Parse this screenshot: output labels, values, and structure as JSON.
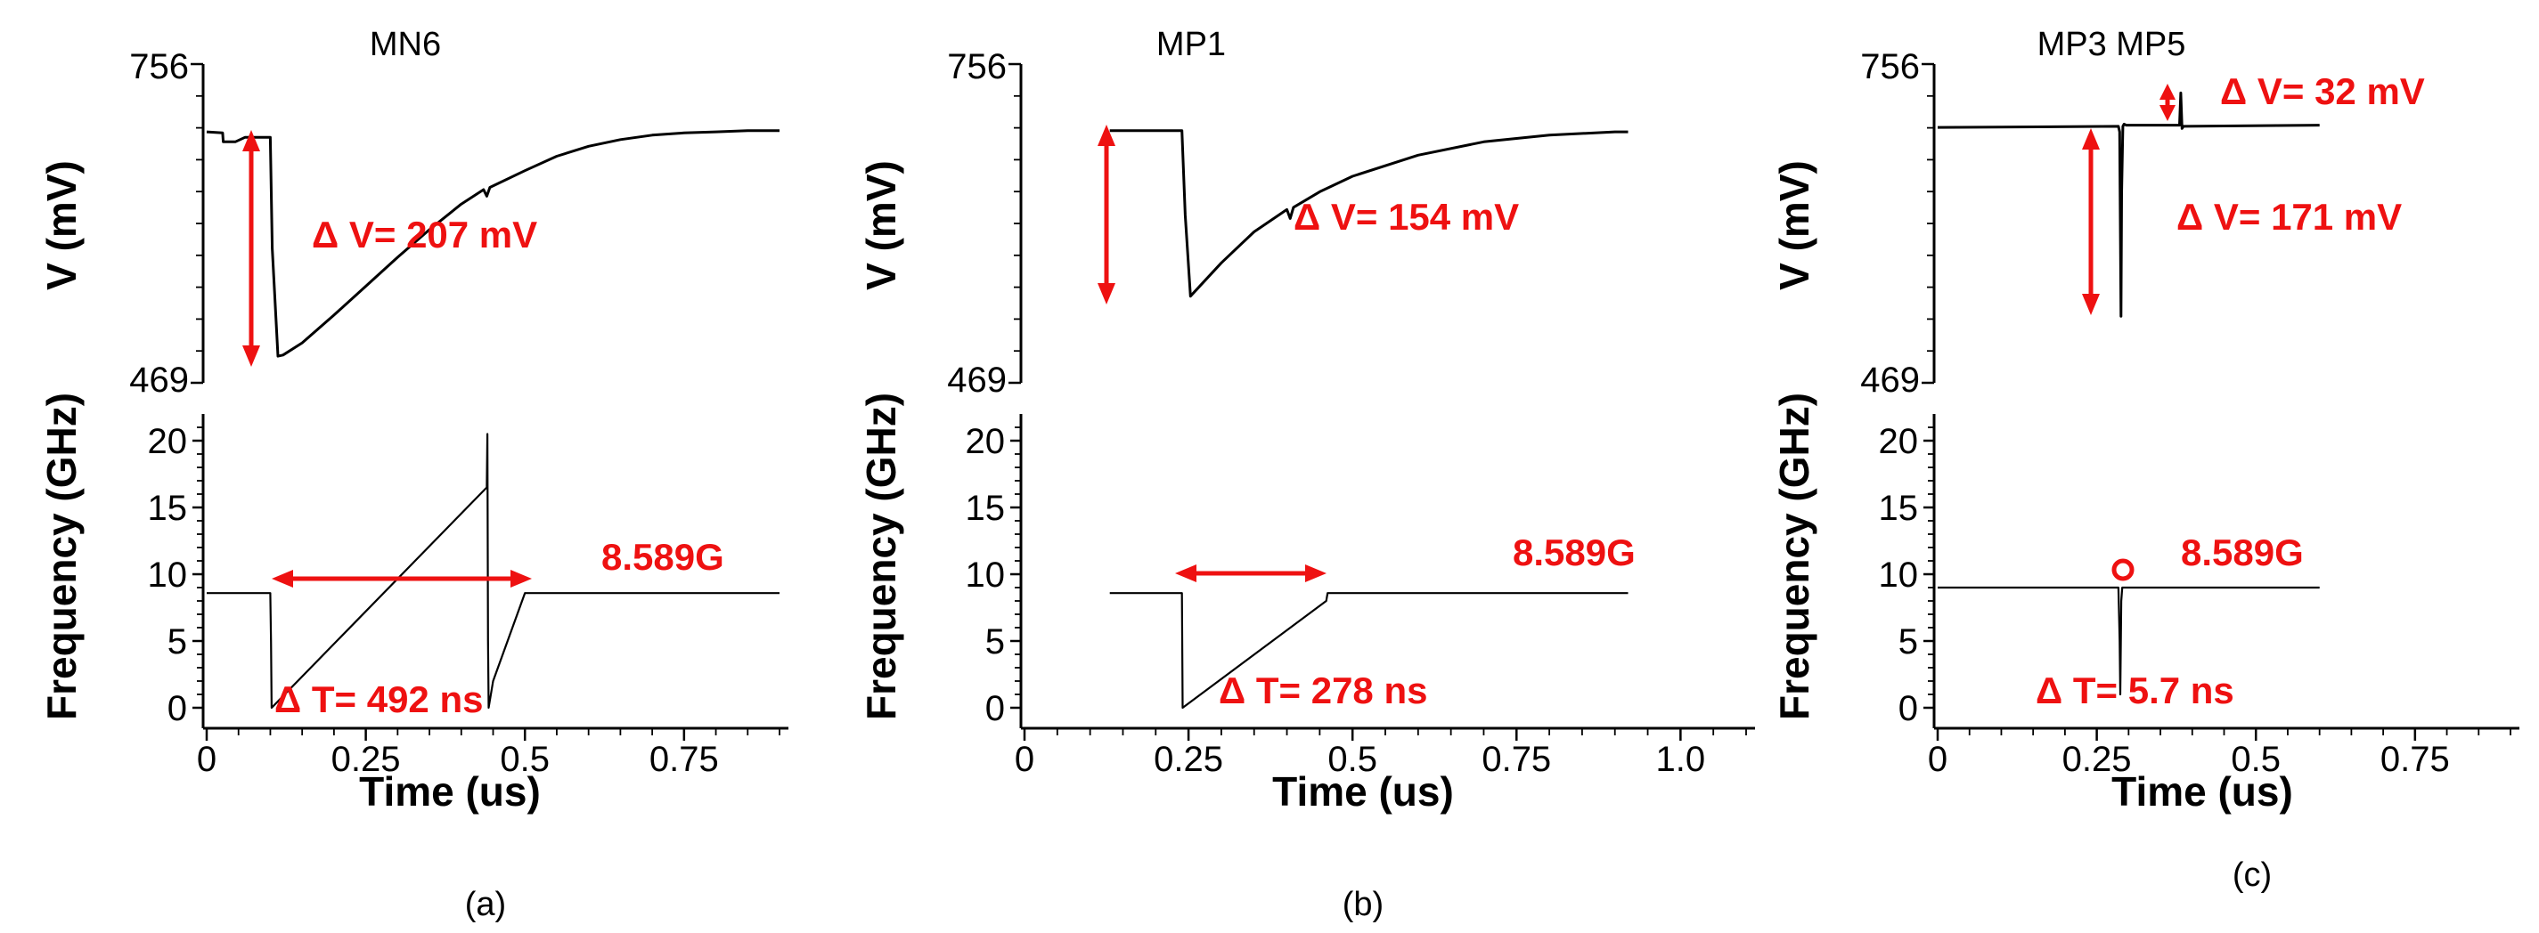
{
  "chart_data": [
    {
      "id": "a",
      "type": "line",
      "caption": "(a)",
      "title": "MN6",
      "xlabel": "Time (us)",
      "xlim": [
        0,
        0.9
      ],
      "xticks": [
        "0",
        "0.25",
        "0.5",
        "0.75"
      ],
      "voltage": {
        "ylabel": "V (mV)",
        "ylim": [
          469,
          756
        ],
        "ytick_labels": [
          "756",
          "469"
        ],
        "x": [
          0.0,
          0.025,
          0.026,
          0.045,
          0.06,
          0.1,
          0.103,
          0.112,
          0.12,
          0.15,
          0.2,
          0.25,
          0.3,
          0.35,
          0.4,
          0.435,
          0.44,
          0.445,
          0.5,
          0.55,
          0.6,
          0.65,
          0.7,
          0.75,
          0.8,
          0.85,
          0.9
        ],
        "y": [
          695,
          694,
          686,
          686,
          690,
          690,
          590,
          493,
          494,
          505,
          530,
          556,
          582,
          607,
          630,
          643,
          637,
          645,
          660,
          673,
          682,
          688,
          692,
          694,
          695,
          696,
          696
        ],
        "annotation": "Δ V= 207 mV"
      },
      "frequency": {
        "ylabel": "Frequency (GHz)",
        "ylim": [
          -1,
          22
        ],
        "yticks": [
          0,
          5,
          10,
          15,
          20
        ],
        "x": [
          0.0,
          0.1,
          0.101,
          0.102,
          0.44,
          0.441,
          0.442,
          0.443,
          0.45,
          0.5,
          0.9
        ],
        "y": [
          8.589,
          8.589,
          5.0,
          0.0,
          16.5,
          20.5,
          5.0,
          0.0,
          2.0,
          8.589,
          8.589
        ],
        "annotation_level": "8.589G",
        "annotation_period": "Δ T= 492 ns"
      }
    },
    {
      "id": "b",
      "type": "line",
      "caption": "(b)",
      "title": "MP1",
      "xlabel": "Time (us)",
      "xlim": [
        0,
        1.1
      ],
      "xticks": [
        "0",
        "0.25",
        "0.5",
        "0.75",
        "1.0"
      ],
      "voltage": {
        "ylabel": "V (mV)",
        "ylim": [
          469,
          756
        ],
        "ytick_labels": [
          "756",
          "469"
        ],
        "x": [
          0.13,
          0.24,
          0.245,
          0.253,
          0.3,
          0.35,
          0.4,
          0.405,
          0.41,
          0.45,
          0.5,
          0.6,
          0.7,
          0.8,
          0.9,
          0.92
        ],
        "y": [
          696,
          696,
          620,
          547,
          577,
          605,
          625,
          617,
          627,
          641,
          655,
          674,
          686,
          692,
          695,
          695
        ],
        "annotation": "Δ V= 154 mV"
      },
      "frequency": {
        "ylabel": "Frequency (GHz)",
        "ylim": [
          -1,
          22
        ],
        "yticks": [
          0,
          5,
          10,
          15,
          20
        ],
        "x": [
          0.13,
          0.24,
          0.241,
          0.46,
          0.462,
          0.92
        ],
        "y": [
          8.589,
          8.589,
          0.0,
          8.0,
          8.589,
          8.589
        ],
        "annotation_level": "8.589G",
        "annotation_period": "Δ T= 278 ns"
      }
    },
    {
      "id": "c",
      "type": "line",
      "caption": "(c)",
      "title": "MP3 MP5",
      "xlabel": "Time (us)",
      "xlim": [
        0,
        0.9
      ],
      "xticks": [
        "0",
        "0.25",
        "0.5",
        "0.75"
      ],
      "voltage": {
        "ylabel": "V (mV)",
        "ylim": [
          469,
          756
        ],
        "ytick_labels": [
          "756",
          "469"
        ],
        "x": [
          0.0,
          0.284,
          0.286,
          0.288,
          0.289,
          0.291,
          0.293,
          0.296,
          0.3,
          0.38,
          0.382,
          0.384,
          0.386,
          0.6
        ],
        "y": [
          699,
          700,
          695,
          529,
          640,
          700,
          702,
          701,
          701,
          701,
          730,
          698,
          700,
          701
        ],
        "annotation": "Δ V= 171 mV",
        "annotation2": "Δ V= 32 mV"
      },
      "frequency": {
        "ylabel": "Frequency (GHz)",
        "ylim": [
          -1,
          22
        ],
        "yticks": [
          0,
          5,
          10,
          15,
          20
        ],
        "x": [
          0.0,
          0.284,
          0.286,
          0.287,
          0.2885,
          0.29,
          0.6
        ],
        "y": [
          9.0,
          9.0,
          5.0,
          1.0,
          8.0,
          9.0,
          9.0
        ],
        "annotation_level": "8.589G",
        "annotation_period": "Δ T= 5.7 ns"
      }
    }
  ]
}
